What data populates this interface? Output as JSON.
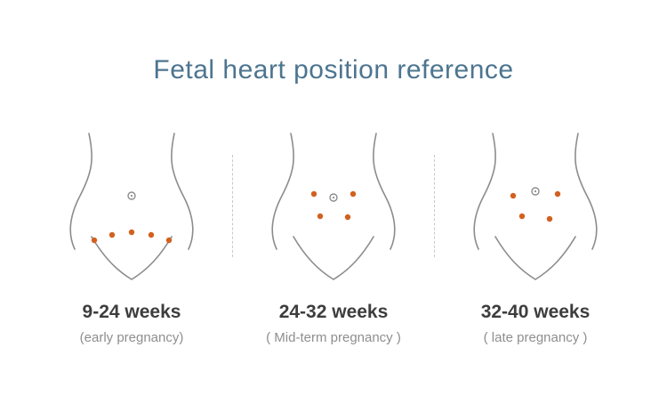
{
  "title": "Fetal heart position reference",
  "colors": {
    "title": "#4d7590",
    "outline": "#8c8c8c",
    "dot": "#d2601f",
    "label": "#3d3d3d",
    "sublabel": "#8e8e8e",
    "divider": "#c9c9c9"
  },
  "figures": [
    {
      "id": "early",
      "weeks": "9-24 weeks",
      "stage": "(early pregnancy)",
      "navel": [
        100,
        72
      ],
      "dots": [
        [
          58,
          122
        ],
        [
          78,
          116
        ],
        [
          100,
          113
        ],
        [
          122,
          116
        ],
        [
          142,
          122
        ]
      ]
    },
    {
      "id": "mid",
      "weeks": "24-32 weeks",
      "stage": "( Mid-term pregnancy )",
      "navel": [
        100,
        74
      ],
      "dots": [
        [
          78,
          70
        ],
        [
          122,
          70
        ],
        [
          85,
          95
        ],
        [
          116,
          96
        ]
      ]
    },
    {
      "id": "late",
      "weeks": "32-40 weeks",
      "stage": "( late pregnancy )",
      "navel": [
        100,
        67
      ],
      "dots": [
        [
          75,
          72
        ],
        [
          125,
          70
        ],
        [
          85,
          95
        ],
        [
          116,
          98
        ]
      ]
    }
  ]
}
